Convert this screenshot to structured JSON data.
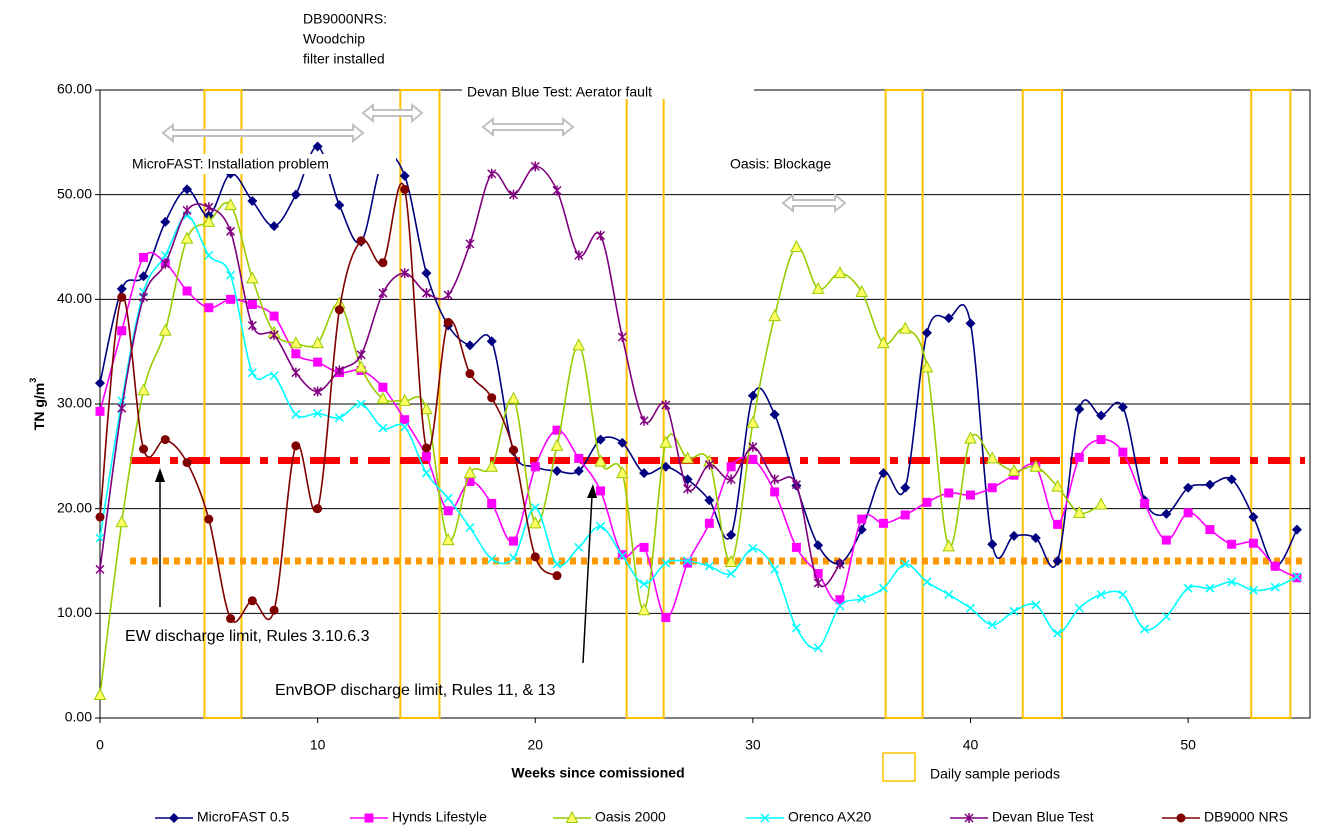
{
  "chart_data": {
    "type": "line",
    "x_label": "Weeks since comissioned",
    "y_label": {
      "text": "TN  g/m",
      "sup": "3"
    },
    "xlim": [
      0,
      55.6
    ],
    "ylim": [
      0,
      60
    ],
    "xticks": [
      0,
      10,
      20,
      30,
      40,
      50
    ],
    "yticks": [
      {
        "value": 0,
        "label": "0.00"
      },
      {
        "value": 10,
        "label": "10.00"
      },
      {
        "value": 20,
        "label": "20.00"
      },
      {
        "value": 30,
        "label": "30.00"
      },
      {
        "value": 40,
        "label": "40.00"
      },
      {
        "value": 50,
        "label": "50.00"
      },
      {
        "value": 60,
        "label": "60.00"
      }
    ],
    "grid": true,
    "x": [
      0,
      1,
      2,
      3,
      4,
      5,
      6,
      7,
      8,
      9,
      10,
      11,
      12,
      13,
      14,
      15,
      16,
      17,
      18,
      19,
      20,
      21,
      22,
      23,
      24,
      25,
      26,
      27,
      28,
      29,
      30,
      31,
      32,
      33,
      34,
      35,
      36,
      37,
      38,
      39,
      40,
      41,
      42,
      43,
      44,
      45,
      46,
      47,
      48,
      49,
      50,
      51,
      52,
      53,
      54,
      55
    ],
    "series": [
      {
        "name": "MicroFAST 0.5",
        "color": "#000080",
        "marker": "diamond",
        "values": [
          32,
          41,
          42.2,
          47.4,
          50.5,
          48,
          52,
          49.4,
          47,
          50,
          54.6,
          49,
          45.5,
          53.3,
          51.8,
          42.5,
          37.5,
          35.6,
          36,
          25.5,
          24,
          23.6,
          23.6,
          26.6,
          26.3,
          23.4,
          24,
          22.8,
          20.8,
          17.5,
          30.8,
          29,
          22.2,
          16.5,
          14.8,
          18,
          23.4,
          22,
          36.8,
          38.2,
          37.7,
          16.6,
          17.4,
          17.2,
          15,
          29.5,
          28.9,
          29.7,
          20.8,
          19.5,
          22,
          22.3,
          22.8,
          19.2,
          14.5,
          18
        ]
      },
      {
        "name": "Hynds Lifestyle",
        "color": "#ff00ff",
        "marker": "square",
        "values": [
          29.3,
          37,
          44,
          43.5,
          40.8,
          39.2,
          40,
          39.5,
          38.4,
          34.8,
          34,
          33,
          33.2,
          31.6,
          28.5,
          25,
          19.8,
          22.6,
          20.5,
          16.9,
          24,
          27.5,
          24.8,
          21.7,
          15.6,
          16.3,
          9.6,
          14.8,
          18.6,
          24,
          24.7,
          21.6,
          16.3,
          13.8,
          11.3,
          19,
          18.6,
          19.4,
          20.6,
          21.5,
          21.3,
          22,
          23.2,
          24,
          18.5,
          24.9,
          26.6,
          25.4,
          20.5,
          17,
          19.6,
          18,
          16.6,
          16.7,
          14.5,
          13.4
        ]
      },
      {
        "name": "Oasis 2000",
        "color": "#99cc00",
        "marker": "triangle",
        "marker_fill": "#ffff66",
        "values": [
          2.2,
          18.7,
          31.3,
          37,
          45.8,
          47.4,
          49,
          42,
          36.8,
          35.8,
          35.8,
          39.6,
          33.5,
          30.5,
          30.3,
          29.5,
          17,
          23.4,
          24,
          30.5,
          18.6,
          26,
          35.6,
          24.5,
          23.4,
          10.3,
          26.3,
          24.8,
          24.5,
          14.9,
          28.2,
          38.4,
          45,
          41,
          42.5,
          40.7,
          35.8,
          37.2,
          33.5,
          16.4,
          26.7,
          24.8,
          23.6,
          24,
          22.1,
          19.6,
          20.4,
          null,
          null,
          null,
          null,
          null,
          null,
          null,
          null,
          null
        ]
      },
      {
        "name": "Orenco AX20",
        "color": "#00ffff",
        "marker": "x",
        "values": [
          17.2,
          30.3,
          40.7,
          44.2,
          48,
          44.2,
          42.3,
          33,
          32.7,
          29,
          29.1,
          28.7,
          30,
          27.7,
          27.8,
          23.4,
          21,
          18.2,
          15.2,
          15.3,
          20.1,
          14.7,
          16.3,
          18.3,
          15.5,
          12.8,
          14.8,
          15,
          14.5,
          13.8,
          16.2,
          14.2,
          8.6,
          6.7,
          10.7,
          11.4,
          12.4,
          14.7,
          13,
          11.8,
          10.5,
          8.9,
          10.2,
          10.8,
          8.1,
          10.5,
          11.8,
          11.8,
          8.5,
          9.7,
          12.4,
          12.4,
          13,
          12.2,
          12.5,
          13.5
        ]
      },
      {
        "name": "Devan Blue Test",
        "color": "#800080",
        "marker": "star",
        "values": [
          14.2,
          29.6,
          40.2,
          43.4,
          48.5,
          48.8,
          46.5,
          37.5,
          36.6,
          33,
          31.2,
          33.2,
          34.7,
          40.6,
          42.5,
          40.6,
          40.4,
          45.3,
          52,
          50,
          52.7,
          50.4,
          44.2,
          46.1,
          36.4,
          28.4,
          29.9,
          21.9,
          24.2,
          22.8,
          25.9,
          22.8,
          22.3,
          12.9,
          14.7,
          null,
          null,
          null,
          null,
          null,
          null,
          null,
          null,
          null,
          null,
          null,
          null,
          null,
          null,
          null,
          null,
          null,
          null,
          null,
          null,
          null
        ]
      },
      {
        "name": "DB9000 NRS",
        "color": "#800000",
        "marker": "circle",
        "values": [
          19.2,
          40.2,
          25.7,
          26.6,
          24.4,
          19,
          9.5,
          11.2,
          10.3,
          26,
          20,
          39,
          45.6,
          43.5,
          50.5,
          25.8,
          37.8,
          32.9,
          30.6,
          25.6,
          15.4,
          13.6,
          null,
          null,
          null,
          null,
          null,
          null,
          null,
          null,
          null,
          null,
          null,
          null,
          null,
          null,
          null,
          null,
          null,
          null,
          null,
          null,
          null,
          null,
          null,
          null,
          null,
          null,
          null,
          null,
          null,
          null,
          null,
          null,
          null,
          null
        ]
      }
    ],
    "reference_lines": [
      {
        "value": 24.6,
        "color": "#ff0000",
        "style": "dashed",
        "label": "EW discharge limit, Rules 3.10.6.3"
      },
      {
        "value": 15,
        "color": "#ff9900",
        "style": "dotted",
        "label": "EnvBOP discharge limit, Rules 11, & 13"
      }
    ],
    "sample_periods": {
      "name": "Daily sample periods",
      "color": "#ffc000",
      "ranges": [
        [
          4.8,
          6.5
        ],
        [
          13.8,
          15.6
        ],
        [
          24.2,
          25.9
        ],
        [
          36.1,
          37.8
        ],
        [
          42.4,
          44.2
        ],
        [
          52.9,
          54.7
        ]
      ]
    },
    "annotations": [
      {
        "lines": [
          "DB9000NRS:",
          "Woodchip",
          "filter installed"
        ]
      },
      {
        "text": "Devan Blue Test: Aerator fault"
      },
      {
        "text": "MicroFAST: Installation problem"
      },
      {
        "text": "Oasis: Blockage"
      }
    ]
  }
}
